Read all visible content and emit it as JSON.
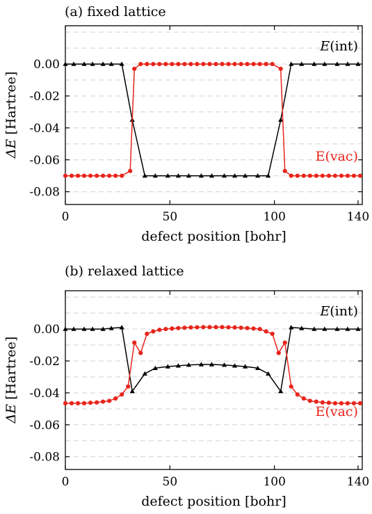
{
  "chart_data": [
    {
      "type": "line",
      "title": "(a) fixed lattice",
      "xlabel": "defect position [bohr]",
      "ylabel_symbol": "ΔE",
      "ylabel_unit": "[Hartree]",
      "xlim": [
        0,
        142
      ],
      "ylim": [
        -0.088,
        0.024
      ],
      "xticks": [
        "0",
        "50",
        "100",
        "140"
      ],
      "xtick_values": [
        0,
        50,
        100,
        140
      ],
      "yticks": [
        "0.00",
        "-0.02",
        "-0.04",
        "-0.06",
        "-0.08"
      ],
      "ytick_values": [
        0.0,
        -0.02,
        -0.04,
        -0.06,
        -0.08
      ],
      "grid": "dashed horizontal",
      "series": [
        {
          "name": "E(int)",
          "color": "#000000",
          "marker": "triangle",
          "x": [
            0,
            4,
            9,
            13,
            18,
            22,
            27,
            32,
            38,
            43,
            49,
            54,
            59,
            65,
            70,
            76,
            81,
            86,
            92,
            97,
            103,
            108,
            113,
            119,
            124,
            130,
            135,
            140
          ],
          "y": [
            0.0,
            0.0,
            0.0,
            0.0,
            0.0,
            0.0,
            0.0,
            -0.035,
            -0.07,
            -0.07,
            -0.07,
            -0.07,
            -0.07,
            -0.07,
            -0.07,
            -0.07,
            -0.07,
            -0.07,
            -0.07,
            -0.07,
            -0.035,
            0.0,
            0.0,
            0.0,
            0.0,
            0.0,
            0.0,
            0.0
          ]
        },
        {
          "name": "E(vac)",
          "color": "#e8241b",
          "marker": "circle",
          "x": [
            0,
            3,
            6,
            9,
            12,
            15,
            18,
            21,
            24,
            27,
            31,
            33,
            36,
            39,
            42,
            45,
            48,
            51,
            54,
            57,
            60,
            63,
            66,
            69,
            72,
            75,
            78,
            81,
            84,
            87,
            90,
            93,
            96,
            99,
            103,
            105,
            108,
            111,
            114,
            117,
            120,
            123,
            126,
            129,
            132,
            135,
            138,
            141
          ],
          "y": [
            -0.07,
            -0.07,
            -0.07,
            -0.07,
            -0.07,
            -0.07,
            -0.07,
            -0.07,
            -0.07,
            -0.07,
            -0.067,
            -0.003,
            0.0,
            0.0,
            0.0,
            0.0,
            0.0,
            0.0,
            0.0,
            0.0,
            0.0,
            0.0,
            0.0,
            0.0,
            0.0,
            0.0,
            0.0,
            0.0,
            0.0,
            0.0,
            0.0,
            0.0,
            0.0,
            0.0,
            -0.003,
            -0.067,
            -0.07,
            -0.07,
            -0.07,
            -0.07,
            -0.07,
            -0.07,
            -0.07,
            -0.07,
            -0.07,
            -0.07,
            -0.07,
            -0.07
          ]
        }
      ],
      "labels": [
        {
          "series": "E(int)",
          "symbol": "E",
          "suffix": "(int)",
          "x": 140,
          "y": 0.0085,
          "anchor": "end"
        },
        {
          "series": "E(vac)",
          "text": "E(vac)",
          "x": 140,
          "y": -0.0605,
          "anchor": "end"
        }
      ]
    },
    {
      "type": "line",
      "title": "(b) relaxed lattice",
      "xlabel": "defect position [bohr]",
      "ylabel_symbol": "ΔE",
      "ylabel_unit": "[Hartree]",
      "xlim": [
        0,
        142
      ],
      "ylim": [
        -0.088,
        0.024
      ],
      "xticks": [
        "0",
        "50",
        "100",
        "140"
      ],
      "xtick_values": [
        0,
        50,
        100,
        140
      ],
      "yticks": [
        "0.00",
        "-0.02",
        "-0.04",
        "-0.06",
        "-0.08"
      ],
      "ytick_values": [
        0.0,
        -0.02,
        -0.04,
        -0.06,
        -0.08
      ],
      "grid": "dashed horizontal",
      "series": [
        {
          "name": "E(int)",
          "color": "#000000",
          "marker": "triangle",
          "x": [
            0,
            4,
            9,
            13,
            18,
            22,
            27,
            32,
            38,
            43,
            49,
            54,
            59,
            65,
            70,
            76,
            81,
            86,
            92,
            97,
            103,
            108,
            113,
            119,
            124,
            130,
            135,
            140
          ],
          "y": [
            0.0,
            0.0,
            0.0,
            0.0,
            0.0,
            0.0005,
            0.001,
            -0.039,
            -0.028,
            -0.0245,
            -0.0235,
            -0.023,
            -0.0225,
            -0.0222,
            -0.0222,
            -0.0225,
            -0.023,
            -0.0235,
            -0.0245,
            -0.028,
            -0.039,
            0.001,
            0.0005,
            0.0,
            0.0,
            0.0,
            0.0,
            0.0
          ]
        },
        {
          "name": "E(vac)",
          "color": "#e8241b",
          "marker": "circle",
          "x": [
            0,
            3,
            6,
            9,
            12,
            15,
            18,
            21,
            24,
            27,
            30,
            33,
            36,
            39,
            42,
            45,
            48,
            51,
            54,
            57,
            60,
            63,
            66,
            69,
            72,
            75,
            78,
            81,
            84,
            87,
            90,
            93,
            96,
            99,
            102,
            105,
            108,
            111,
            114,
            117,
            120,
            123,
            126,
            129,
            132,
            135,
            138,
            141
          ],
          "y": [
            -0.0465,
            -0.0465,
            -0.0465,
            -0.0465,
            -0.0462,
            -0.046,
            -0.0455,
            -0.045,
            -0.0435,
            -0.041,
            -0.036,
            -0.0085,
            -0.015,
            -0.003,
            -0.0015,
            -0.0005,
            0.0,
            0.0003,
            0.0006,
            0.0008,
            0.001,
            0.0011,
            0.0012,
            0.0012,
            0.0012,
            0.0012,
            0.0011,
            0.001,
            0.0008,
            0.0006,
            0.0003,
            0.0,
            -0.0015,
            -0.003,
            -0.015,
            -0.0085,
            -0.036,
            -0.041,
            -0.0435,
            -0.045,
            -0.0455,
            -0.046,
            -0.0462,
            -0.0465,
            -0.0465,
            -0.0465,
            -0.0465,
            -0.0465
          ]
        }
      ],
      "labels": [
        {
          "series": "E(int)",
          "symbol": "E",
          "suffix": "(int)",
          "x": 140,
          "y": 0.0085,
          "anchor": "end"
        },
        {
          "series": "E(vac)",
          "text": "E(vac)",
          "x": 140,
          "y": -0.0545,
          "anchor": "end"
        }
      ]
    }
  ]
}
